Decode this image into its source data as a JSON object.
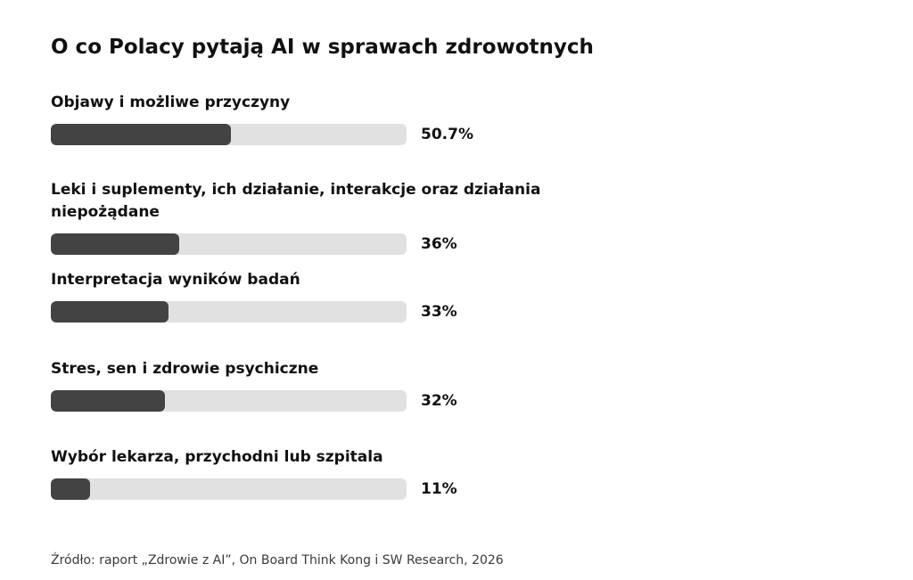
{
  "chart_data": {
    "type": "bar",
    "orientation": "horizontal",
    "title": "O co Polacy pytają AI w sprawach zdrowotnych",
    "categories": [
      "Objawy i możliwe przyczyny",
      "Leki i suplementy, ich działanie, interakcje oraz działania niepożądane",
      "Interpretacja wyników badań",
      "Stres, sen i zdrowie psychiczne",
      "Wybór lekarza, przychodni lub szpitala"
    ],
    "values": [
      50.7,
      36,
      33,
      32,
      11
    ],
    "value_labels": [
      "50.7%",
      "36%",
      "33%",
      "32%",
      "11%"
    ],
    "unit": "%",
    "xlim": [
      0,
      100
    ],
    "grid": false,
    "legend": "none",
    "colors": {
      "bar": "#434343",
      "track": "#e1e1e1",
      "text": "#111111"
    },
    "source": "Źródło: raport „Zdrowie z AI”, On Board Think Kong i SW Research, 2026"
  }
}
